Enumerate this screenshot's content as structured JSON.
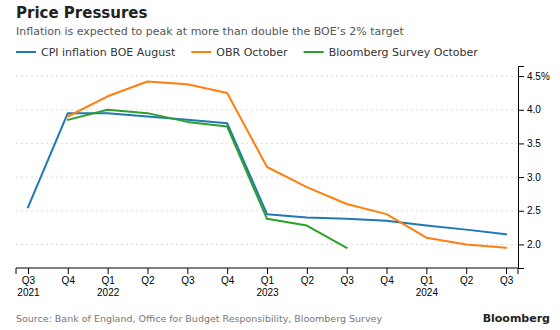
{
  "chart_data": {
    "type": "line",
    "title": "Price Pressures",
    "subtitle": "Inflation is expected to peak at more than double the BOE’s 2% target",
    "source": "Source: Bank of England, Office for Budget Responsibility, Bloomberg Survey",
    "annotations": [
      "Bloomberg"
    ],
    "categories": [
      "Q3\n2021",
      "Q4",
      "Q1\n2022",
      "Q2",
      "Q3",
      "Q4",
      "Q1\n2023",
      "Q2",
      "Q3",
      "Q4",
      "Q1\n2024",
      "Q2",
      "Q3"
    ],
    "series": [
      {
        "name": "CPI inflation BOE August",
        "line_style": "solid",
        "values": [
          2.55,
          3.95,
          3.95,
          3.9,
          3.85,
          3.8,
          2.45,
          2.4,
          2.38,
          2.35,
          2.28,
          2.22,
          2.15
        ]
      },
      {
        "name": "OBR October",
        "line_style": "solid",
        "values": [
          null,
          3.9,
          4.2,
          4.42,
          4.38,
          4.25,
          3.15,
          2.85,
          2.6,
          2.45,
          2.1,
          2.0,
          1.95
        ]
      },
      {
        "name": "Bloomberg Survey October",
        "line_style": "solid",
        "values": [
          null,
          3.85,
          4.0,
          3.95,
          3.82,
          3.75,
          2.38,
          2.28,
          1.95,
          null,
          null,
          null,
          null
        ]
      }
    ],
    "ylim": [
      1.65,
      4.65
    ],
    "yticks": [
      {
        "value": 2.0,
        "label": "2.0"
      },
      2.5,
      {
        "value": 3.0,
        "label": "3.0"
      },
      3.5,
      {
        "value": 4.0,
        "label": "4.0"
      },
      {
        "value": 4.5,
        "label": "4.5%"
      }
    ],
    "grid": true,
    "legend": "top-left"
  }
}
